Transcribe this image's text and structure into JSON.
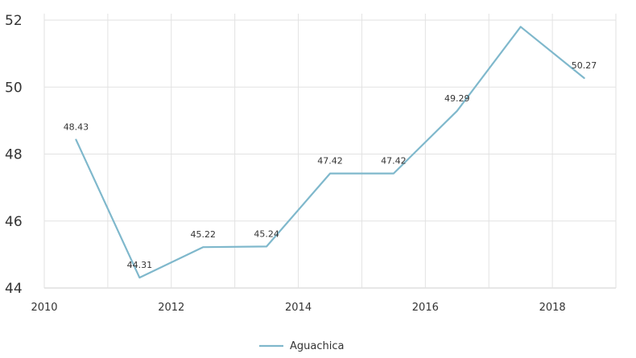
{
  "chart_data": {
    "type": "line",
    "title": "",
    "xlabel": "",
    "ylabel": "",
    "xlim": [
      2010,
      2019
    ],
    "ylim": [
      44,
      52
    ],
    "x_ticks": [
      "2010",
      "2012",
      "2014",
      "2016",
      "2018"
    ],
    "y_ticks": [
      "44",
      "46",
      "48",
      "50",
      "52"
    ],
    "grid": true,
    "legend_position": "bottom",
    "series": [
      {
        "name": "Aguachica",
        "color": "#7fb8cc",
        "points": [
          {
            "x": 2010.5,
            "y": 48.43,
            "label": "48.43"
          },
          {
            "x": 2011.5,
            "y": 44.31,
            "label": "44.31"
          },
          {
            "x": 2012.5,
            "y": 45.22,
            "label": "45.22"
          },
          {
            "x": 2013.5,
            "y": 45.24,
            "label": "45.24"
          },
          {
            "x": 2014.5,
            "y": 47.42,
            "label": "47.42"
          },
          {
            "x": 2015.5,
            "y": 47.42,
            "label": "47.42"
          },
          {
            "x": 2016.5,
            "y": 49.29,
            "label": "49.29"
          },
          {
            "x": 2017.5,
            "y": 51.8,
            "label": ""
          },
          {
            "x": 2018.5,
            "y": 50.27,
            "label": "50.27"
          }
        ]
      }
    ]
  }
}
